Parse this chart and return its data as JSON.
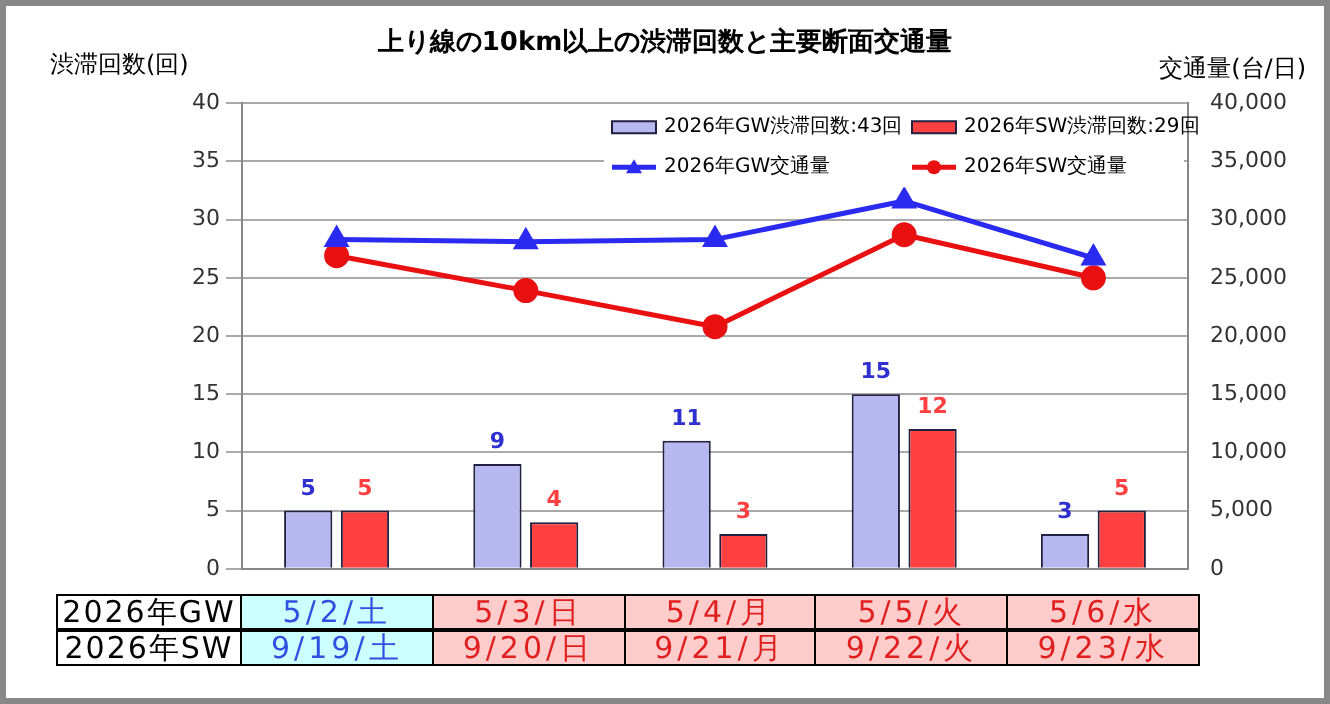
{
  "chart_data": {
    "type": "bar",
    "title": "上り線の10km以上の渋滞回数と主要断面交通量",
    "ylabel": "渋滞回数(回)",
    "y2label": "交通量(台/日)",
    "categories": [
      "5/2/土",
      "5/3/日",
      "5/4/月",
      "5/5/火",
      "5/6/水"
    ],
    "annotations": [
      "2026年GW",
      "2026年SW",
      "9/19/土",
      "9/20/日",
      "9/21/月",
      "9/22/火",
      "9/23/水"
    ],
    "series": [
      {
        "name": "2026年GW渋滞回数:43回",
        "color": "#b8b8f0",
        "values": [
          5,
          9,
          11,
          15,
          3
        ],
        "value_labels": [
          "5",
          "9",
          "11",
          "15",
          "3"
        ]
      },
      {
        "name": "2026年SW渋滞回数:29回",
        "color": "#ff4040",
        "values": [
          5,
          4,
          3,
          12,
          5
        ],
        "value_labels": [
          "5",
          "4",
          "3",
          "12",
          "5"
        ]
      },
      {
        "name": "2026年GW交通量",
        "type": "line",
        "axis": "y2",
        "marker": "triangle",
        "color": "#2a2af0",
        "values": [
          28300,
          28100,
          28300,
          31600,
          26700
        ]
      },
      {
        "name": "2026年SW交通量",
        "type": "line",
        "axis": "y2",
        "marker": "circle",
        "color": "#e81010",
        "values": [
          26900,
          23900,
          20800,
          28700,
          25000
        ]
      }
    ],
    "ylim": [
      0,
      40
    ],
    "yticks": [
      0,
      5,
      10,
      15,
      20,
      25,
      30,
      35,
      40
    ],
    "y2lim": [
      0,
      40000
    ],
    "y2ticks": [
      0,
      {
        "value": 5000,
        "label": "5,000"
      },
      {
        "value": 10000,
        "label": "10,000"
      },
      {
        "value": 15000,
        "label": "15,000"
      },
      {
        "value": 20000,
        "label": "20,000"
      },
      {
        "value": 25000,
        "label": "25,000"
      },
      {
        "value": 30000,
        "label": "30,000"
      },
      {
        "value": 35000,
        "label": "35,000"
      },
      {
        "value": 40000,
        "label": "40,000"
      }
    ],
    "grid": "y",
    "legend": "top right"
  }
}
